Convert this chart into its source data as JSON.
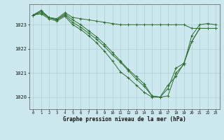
{
  "title": "Graphe pression niveau de la mer (hPa)",
  "background_color": "#cce8ee",
  "grid_color": "#b0d0d8",
  "line_color": "#2d6e2d",
  "marker_color": "#2d6e2d",
  "ylim": [
    1019.5,
    1023.85
  ],
  "xlim": [
    -0.5,
    23.5
  ],
  "yticks": [
    1020,
    1021,
    1022,
    1023
  ],
  "xticks": [
    0,
    1,
    2,
    3,
    4,
    5,
    6,
    7,
    8,
    9,
    10,
    11,
    12,
    13,
    14,
    15,
    16,
    17,
    18,
    19,
    20,
    21,
    22,
    23
  ],
  "series": [
    [
      1023.4,
      1023.6,
      1023.3,
      1023.25,
      1023.5,
      1023.3,
      1023.25,
      1023.2,
      1023.15,
      1023.1,
      1023.05,
      1023.0,
      1023.0,
      1023.0,
      1023.0,
      1023.0,
      1023.0,
      1023.0,
      1023.0,
      1023.0,
      1022.85,
      1022.85,
      1022.85,
      1022.85
    ],
    [
      1023.4,
      1023.55,
      1023.3,
      1023.2,
      1023.45,
      1023.2,
      1023.0,
      1022.75,
      1022.5,
      1022.2,
      1021.85,
      1021.5,
      1021.15,
      1020.85,
      1020.55,
      1020.05,
      1020.0,
      1020.05,
      1021.0,
      1021.35,
      1022.55,
      1023.0,
      1023.05,
      1023.0
    ],
    [
      1023.4,
      1023.5,
      1023.3,
      1023.2,
      1023.4,
      1023.1,
      1022.9,
      1022.65,
      1022.4,
      1022.1,
      1021.75,
      1021.45,
      1021.1,
      1020.75,
      1020.45,
      1020.05,
      1020.0,
      1020.5,
      1020.85,
      1021.4,
      1022.3,
      1022.85,
      1022.85,
      1022.85
    ],
    [
      1023.4,
      1023.45,
      1023.25,
      1023.15,
      1023.35,
      1023.0,
      1022.8,
      1022.55,
      1022.25,
      1021.9,
      1021.5,
      1021.05,
      1020.8,
      1020.5,
      1020.2,
      1020.0,
      1020.0,
      1020.35,
      1021.2,
      1021.4,
      1022.3,
      1022.85,
      1022.85,
      1022.85
    ]
  ],
  "figsize": [
    3.2,
    2.0
  ],
  "dpi": 100
}
